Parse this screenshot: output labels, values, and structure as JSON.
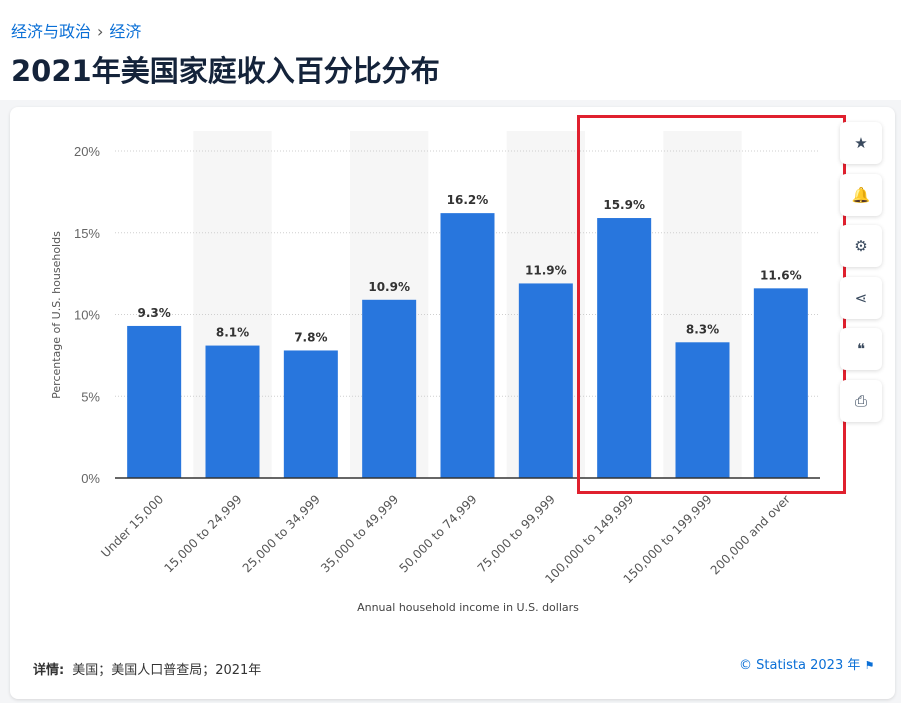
{
  "breadcrumb": {
    "items": [
      "经济与政治",
      "经济"
    ],
    "separator": "›"
  },
  "page_title": "2021年美国家庭收入百分比分布",
  "side_buttons": [
    {
      "icon": "star-icon",
      "glyph": "★"
    },
    {
      "icon": "bell-icon",
      "glyph": "🔔"
    },
    {
      "icon": "gear-icon",
      "glyph": "⚙"
    },
    {
      "icon": "share-icon",
      "glyph": "⋖"
    },
    {
      "icon": "quote-icon",
      "glyph": "❝"
    },
    {
      "icon": "print-icon",
      "glyph": "⎙"
    }
  ],
  "footer": {
    "details_label": "详情:",
    "details_text": "美国；美国人口普查局；2021年",
    "credit": "© Statista 2023 年",
    "flag_icon": "flag-icon"
  },
  "chart_data": {
    "type": "bar",
    "title": "",
    "xlabel": "Annual household income in U.S. dollars",
    "ylabel": "Percentage of U.S. households",
    "categories": [
      "Under 15,000",
      "15,000 to 24,999",
      "25,000 to 34,999",
      "35,000 to 49,999",
      "50,000 to 74,999",
      "75,000 to 99,999",
      "100,000 to 149,999",
      "150,000 to 199,999",
      "200,000 and over"
    ],
    "values": [
      9.3,
      8.1,
      7.8,
      10.9,
      16.2,
      11.9,
      15.9,
      8.3,
      11.6
    ],
    "data_labels": [
      "9.3%",
      "8.1%",
      "7.8%",
      "10.9%",
      "16.2%",
      "11.9%",
      "15.9%",
      "8.3%",
      "11.6%"
    ],
    "ylim": [
      0,
      20
    ],
    "yticks": [
      0,
      5,
      10,
      15,
      20
    ],
    "ytick_labels": [
      "0%",
      "5%",
      "10%",
      "15%",
      "20%"
    ],
    "grid": true,
    "bar_color": "#2876dd",
    "highlight_color": "#e0202e",
    "highlighted_categories": [
      "100,000 to 149,999",
      "150,000 to 199,999",
      "200,000 and over"
    ]
  }
}
